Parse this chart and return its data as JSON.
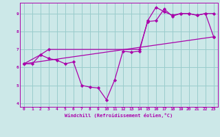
{
  "xlabel": "Windchill (Refroidissement éolien,°C)",
  "xlim": [
    -0.5,
    23.5
  ],
  "ylim": [
    3.8,
    9.6
  ],
  "yticks": [
    4,
    5,
    6,
    7,
    8,
    9
  ],
  "xticks": [
    0,
    1,
    2,
    3,
    4,
    5,
    6,
    7,
    8,
    9,
    10,
    11,
    12,
    13,
    14,
    15,
    16,
    17,
    18,
    19,
    20,
    21,
    22,
    23
  ],
  "bg_color": "#cce8e8",
  "grid_color": "#99cccc",
  "line_color": "#aa00aa",
  "line1_x": [
    0,
    1,
    2,
    3,
    4,
    5,
    6,
    7,
    8,
    9,
    10,
    11,
    12,
    13,
    14,
    15,
    16,
    17,
    18,
    19,
    20,
    21,
    22,
    23
  ],
  "line1_y": [
    6.2,
    6.2,
    6.7,
    6.5,
    6.4,
    6.2,
    6.3,
    5.0,
    4.9,
    4.85,
    4.2,
    5.3,
    6.9,
    6.85,
    6.9,
    8.6,
    9.35,
    9.1,
    8.9,
    9.0,
    9.0,
    8.9,
    9.0,
    7.7
  ],
  "line2_x": [
    0,
    2,
    3,
    14,
    15,
    16,
    17,
    18,
    19,
    20,
    21,
    22,
    23
  ],
  "line2_y": [
    6.2,
    6.7,
    7.0,
    7.0,
    8.55,
    8.6,
    9.25,
    8.85,
    9.0,
    9.0,
    8.9,
    9.0,
    9.0
  ],
  "line3_x": [
    0,
    23
  ],
  "line3_y": [
    6.2,
    7.7
  ]
}
